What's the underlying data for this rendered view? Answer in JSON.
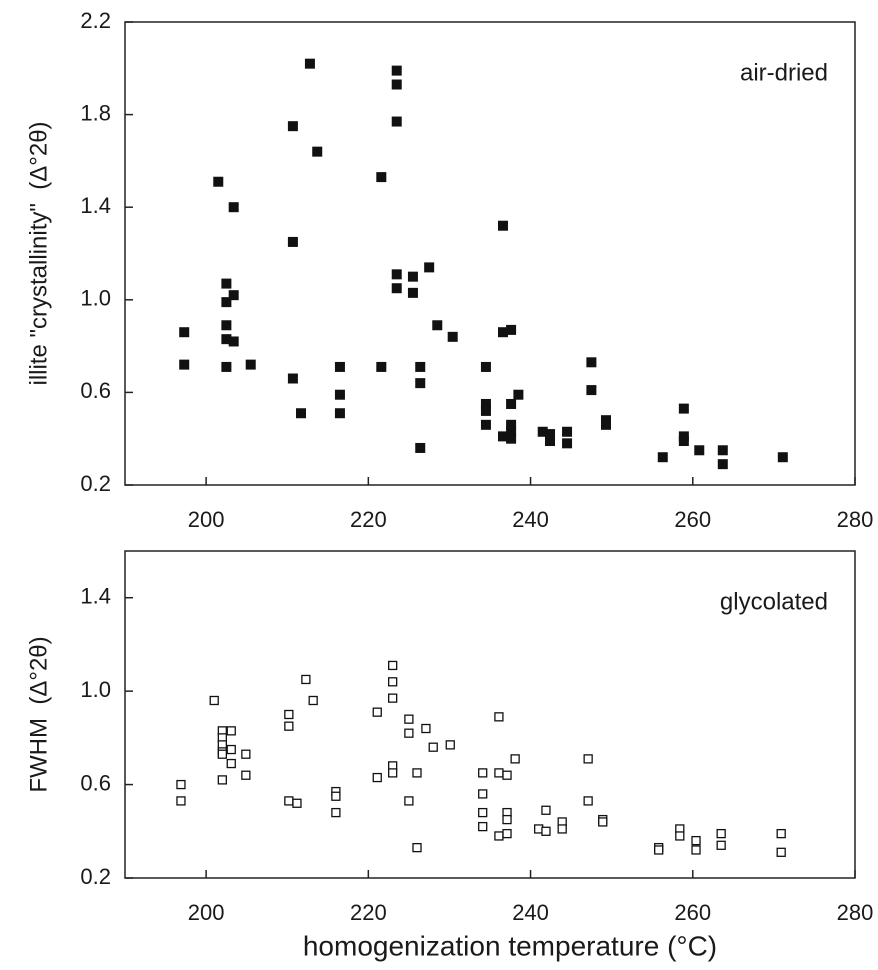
{
  "chart_data": [
    {
      "type": "scatter",
      "ylabel": "illite \"crystallinity\"  (Δ°2θ)",
      "annotation": "air-dried",
      "marker": "filled",
      "color": "#111111",
      "x": [
        197.3,
        197.3,
        201.5,
        202.5,
        202.5,
        202.5,
        202.5,
        202.5,
        203.4,
        203.4,
        203.4,
        205.5,
        210.7,
        210.7,
        210.7,
        211.7,
        212.8,
        213.7,
        216.5,
        216.5,
        216.5,
        221.6,
        221.6,
        223.5,
        223.5,
        223.5,
        223.5,
        223.5,
        225.5,
        225.5,
        226.4,
        226.4,
        226.4,
        227.5,
        228.5,
        230.4,
        234.5,
        234.5,
        234.5,
        234.5,
        236.6,
        236.6,
        236.6,
        237.6,
        237.6,
        237.6,
        237.6,
        237.6,
        238.5,
        241.5,
        242.4,
        242.4,
        244.5,
        244.5,
        247.5,
        247.5,
        249.3,
        249.3,
        256.3,
        258.9,
        258.9,
        258.9,
        260.8,
        263.7,
        263.7,
        271.1
      ],
      "values": [
        0.86,
        0.72,
        1.51,
        1.07,
        0.99,
        0.89,
        0.83,
        0.71,
        1.4,
        1.02,
        0.82,
        0.72,
        1.75,
        1.25,
        0.66,
        0.51,
        2.02,
        1.64,
        0.71,
        0.59,
        0.51,
        1.53,
        0.71,
        1.99,
        1.93,
        1.77,
        1.11,
        1.05,
        1.1,
        1.03,
        0.71,
        0.64,
        0.36,
        1.14,
        0.89,
        0.84,
        0.71,
        0.55,
        0.52,
        0.46,
        1.32,
        0.86,
        0.41,
        0.87,
        0.55,
        0.46,
        0.43,
        0.4,
        0.59,
        0.43,
        0.42,
        0.39,
        0.43,
        0.38,
        0.73,
        0.61,
        0.48,
        0.46,
        0.32,
        0.53,
        0.41,
        0.39,
        0.35,
        0.35,
        0.29,
        0.32
      ],
      "xlim": [
        190,
        280
      ],
      "xticks": [
        200,
        220,
        240,
        260,
        280
      ],
      "ylim": [
        0.2,
        2.2
      ],
      "yticks": [
        0.2,
        0.6,
        {
          "value": 1,
          "label": "1.0"
        },
        1.4,
        1.8,
        2.2
      ]
    },
    {
      "type": "scatter",
      "ylabel": "FWHM  (Δ°2θ)",
      "annotation": "glycolated",
      "xlabel": "homogenization temperature (°C)",
      "marker": "open",
      "color": "#111111",
      "x": [
        196.9,
        196.9,
        201.0,
        202.0,
        202.0,
        202.0,
        202.0,
        202.0,
        202.0,
        203.1,
        203.1,
        203.1,
        204.9,
        204.9,
        210.2,
        210.2,
        210.2,
        211.2,
        212.3,
        213.2,
        216.0,
        216.0,
        216.0,
        221.1,
        221.1,
        223.0,
        223.0,
        223.0,
        223.0,
        223.0,
        225.0,
        225.0,
        225.0,
        226.0,
        226.0,
        227.1,
        228.0,
        230.1,
        234.1,
        234.1,
        234.1,
        234.1,
        236.1,
        236.1,
        236.1,
        237.1,
        237.1,
        237.1,
        237.1,
        238.1,
        241.0,
        241.9,
        241.9,
        243.9,
        243.9,
        247.1,
        247.1,
        248.9,
        248.9,
        255.8,
        255.8,
        258.4,
        258.4,
        260.4,
        260.4,
        263.5,
        263.5,
        270.9,
        270.9
      ],
      "values": [
        0.6,
        0.53,
        0.96,
        0.83,
        0.8,
        0.77,
        0.74,
        0.73,
        0.62,
        0.83,
        0.75,
        0.69,
        0.73,
        0.64,
        0.9,
        0.85,
        0.53,
        0.52,
        1.05,
        0.96,
        0.57,
        0.55,
        0.48,
        0.91,
        0.63,
        1.11,
        1.04,
        0.97,
        0.68,
        0.65,
        0.88,
        0.82,
        0.53,
        0.65,
        0.33,
        0.84,
        0.76,
        0.77,
        0.65,
        0.56,
        0.48,
        0.42,
        0.89,
        0.65,
        0.38,
        0.64,
        0.48,
        0.45,
        0.39,
        0.71,
        0.41,
        0.49,
        0.4,
        0.44,
        0.41,
        0.71,
        0.53,
        0.45,
        0.44,
        0.33,
        0.32,
        0.41,
        0.38,
        0.36,
        0.32,
        0.39,
        0.34,
        0.39,
        0.31
      ],
      "xlim": [
        190,
        280
      ],
      "xticks": [
        200,
        220,
        240,
        260,
        280
      ],
      "ylim": [
        0.2,
        1.6
      ],
      "yticks": [
        0.2,
        0.6,
        {
          "value": 1,
          "label": "1.0"
        },
        1.4
      ]
    }
  ]
}
